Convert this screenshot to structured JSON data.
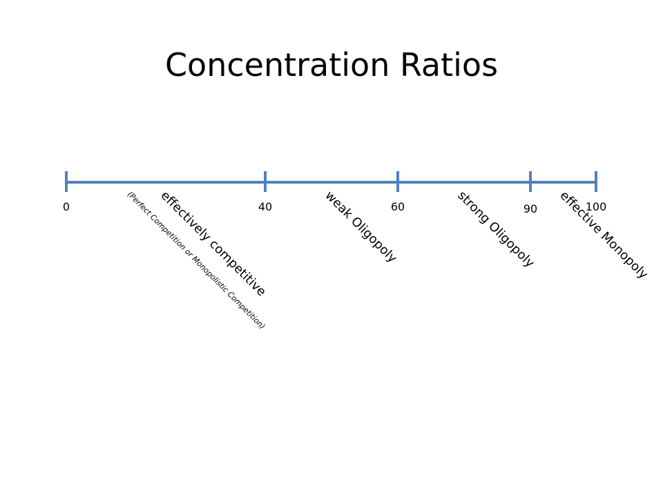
{
  "title": "Concentration Ratios",
  "scale": {
    "ticks": [
      "0",
      "40",
      "60",
      "90",
      "100"
    ]
  },
  "regions": [
    {
      "label": "effectively competitive",
      "note": "(Perfect Competition or Monopolistic Competition)"
    },
    {
      "label": "weak Oligopoly"
    },
    {
      "label": "strong Oligopoly"
    },
    {
      "label": "effective Monopoly"
    }
  ]
}
